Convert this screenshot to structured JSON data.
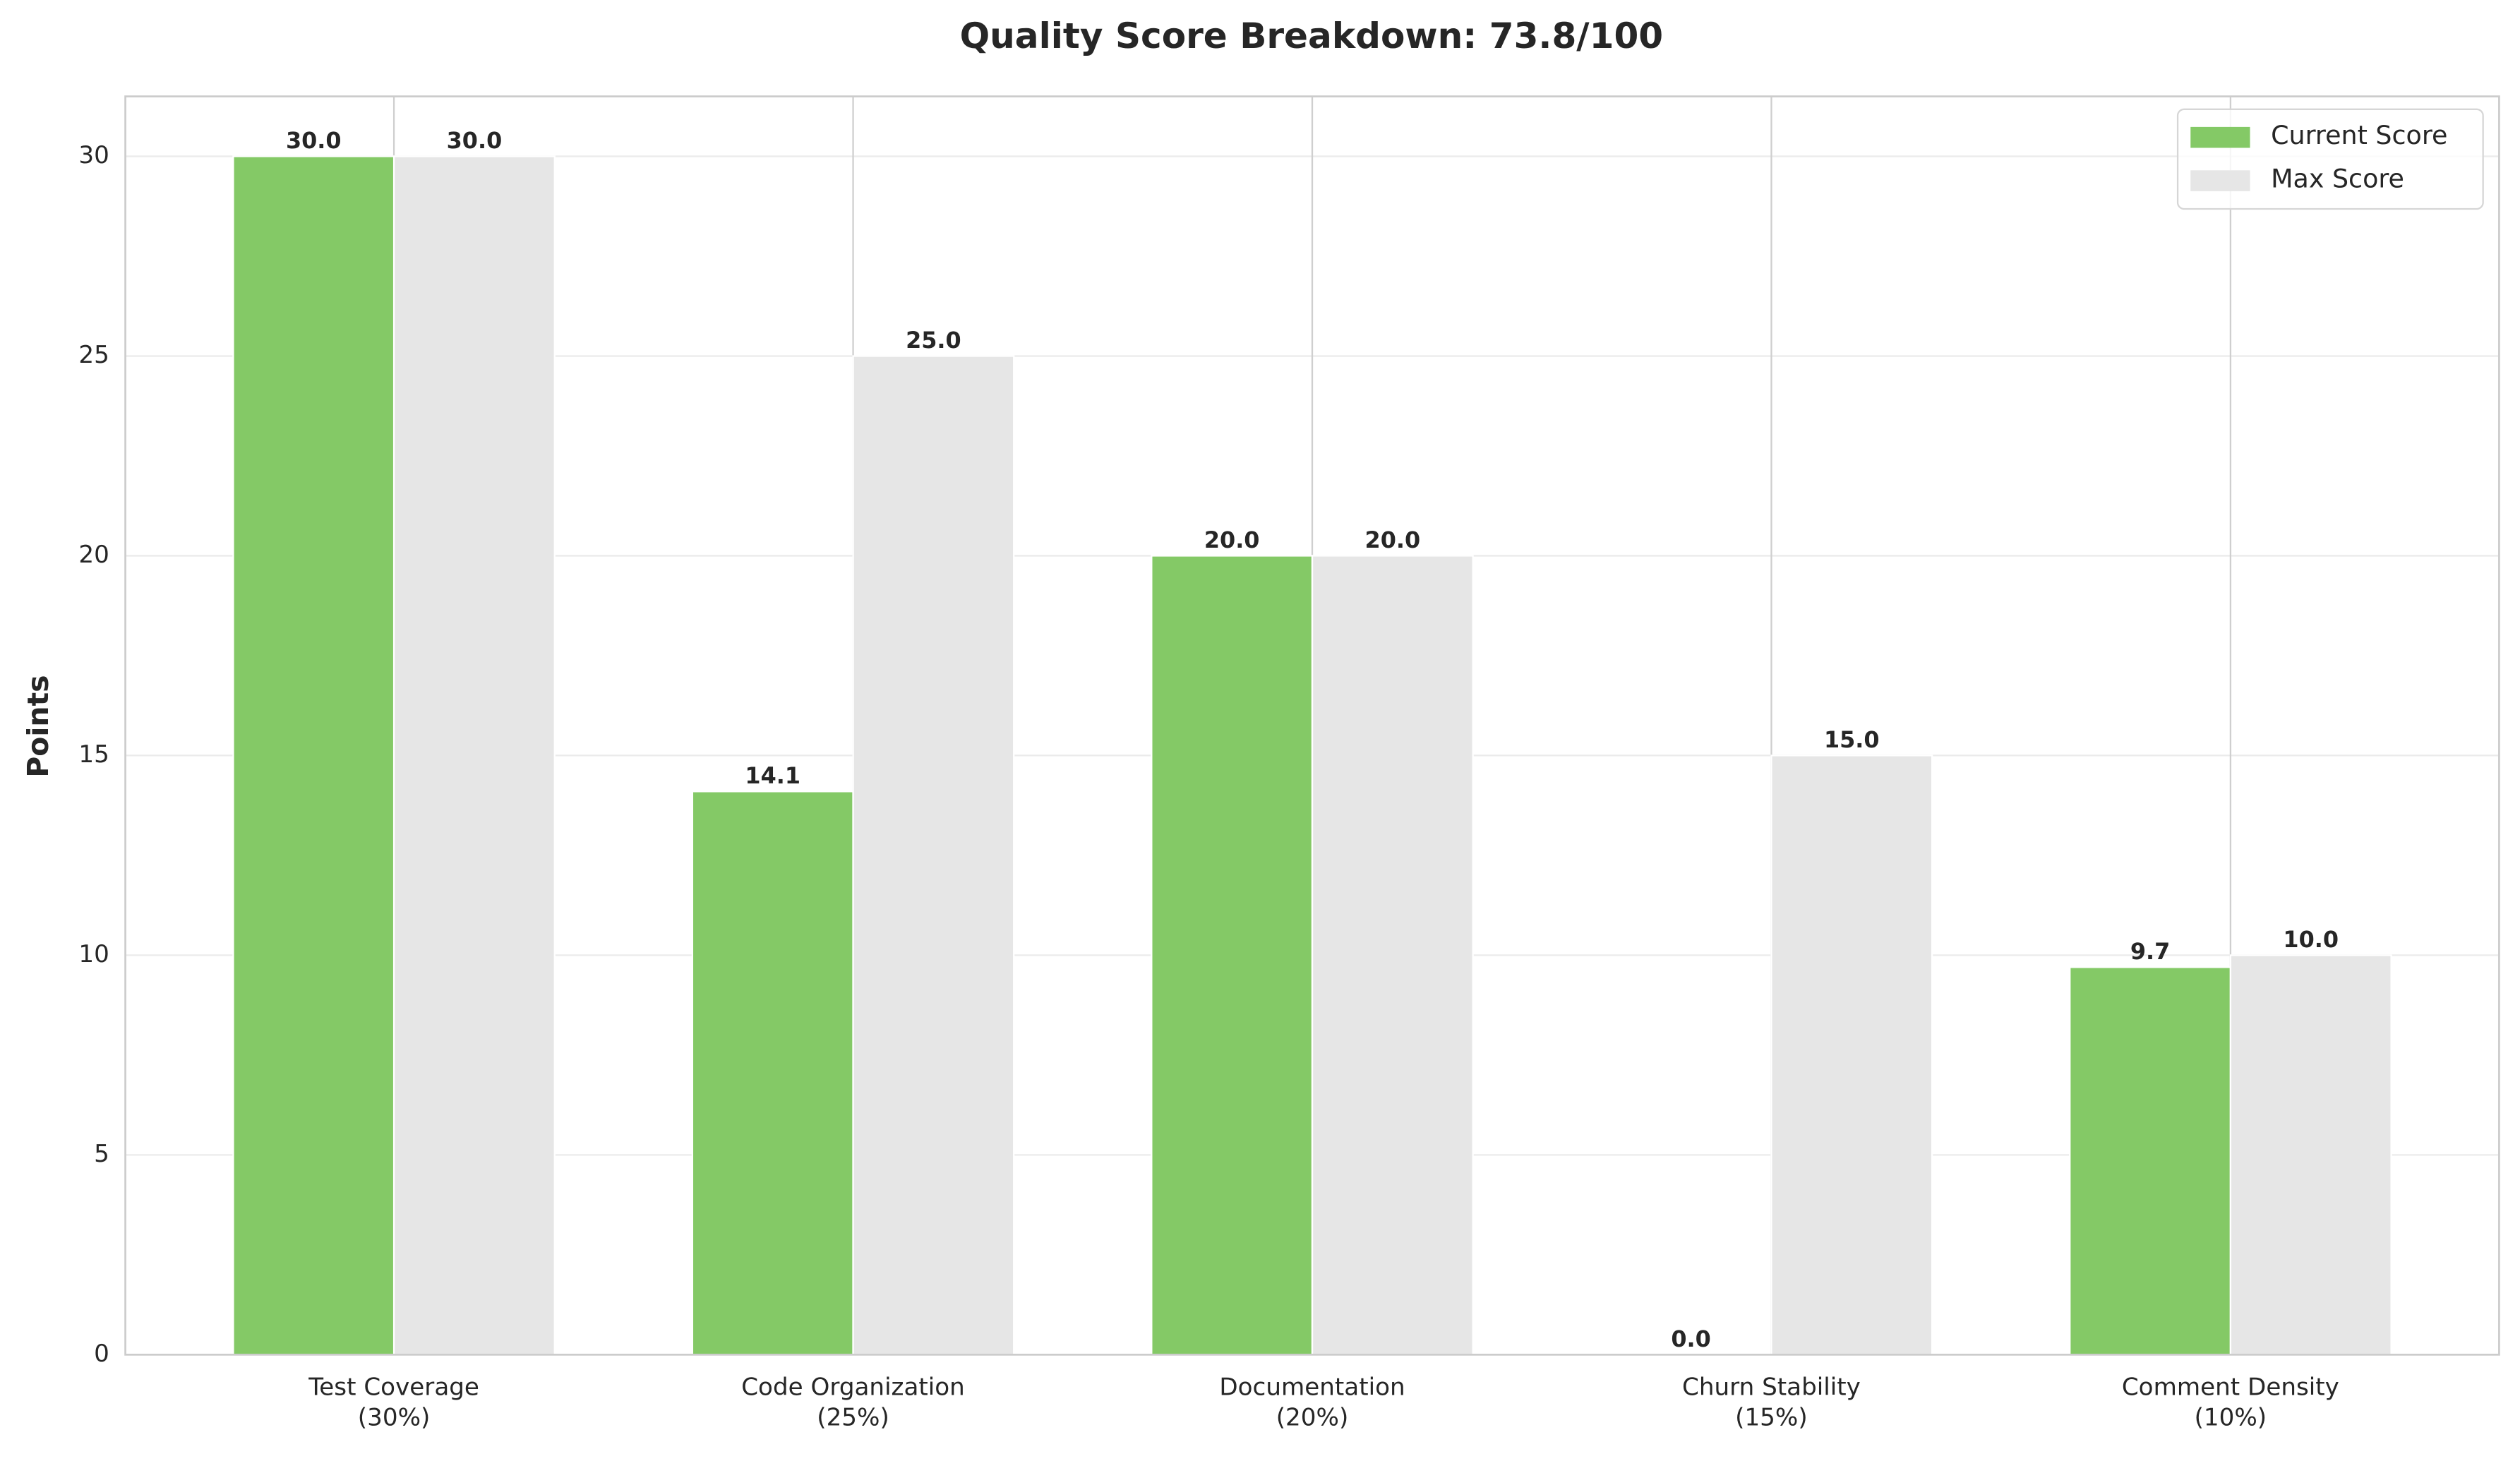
{
  "chart_data": {
    "type": "bar",
    "title": "Quality Score Breakdown: 73.8/100",
    "ylabel": "Points",
    "categories": [
      "Test Coverage\n(30%)",
      "Code Organization\n(25%)",
      "Documentation\n(20%)",
      "Churn Stability\n(15%)",
      "Comment Density\n(10%)"
    ],
    "series": [
      {
        "name": "Current Score",
        "color": "#84c966",
        "values": [
          30,
          14.1,
          20,
          0,
          9.7
        ],
        "value_labels": [
          "30.0",
          "14.1",
          "20.0",
          "0.0",
          "9.7"
        ]
      },
      {
        "name": "Max Score",
        "color": "#e6e6e6",
        "values": [
          30,
          25,
          20,
          15,
          10
        ],
        "value_labels": [
          "30.0",
          "25.0",
          "20.0",
          "15.0",
          "10.0"
        ]
      }
    ],
    "ylim": [
      0,
      31.5
    ],
    "yticks": [
      0,
      5,
      10,
      15,
      20,
      25,
      30
    ],
    "grid": true,
    "legend": "upper right"
  }
}
